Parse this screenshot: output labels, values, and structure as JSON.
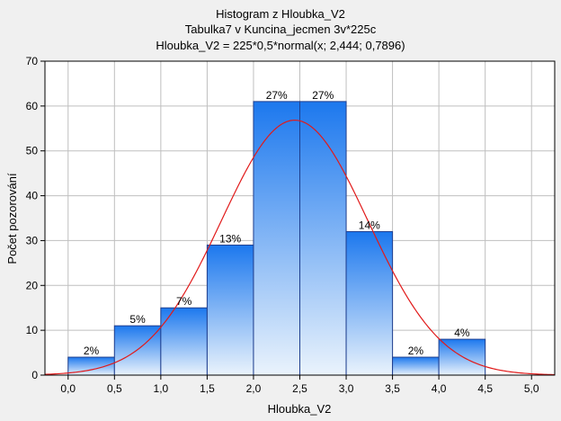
{
  "chart_data": {
    "type": "bar",
    "title": "Histogram z Hloubka_V2",
    "subtitle_lines": [
      "Tabulka7 v Kuncina_jecmen 3v*225c",
      "Hloubka_V2 = 225*0,5*normal(x; 2,444; 0,7896)"
    ],
    "xlabel": "Hloubka_V2",
    "ylabel": "Počet pozorování",
    "bins": [
      {
        "from": 0.0,
        "to": 0.5,
        "value": 4,
        "label": "2%"
      },
      {
        "from": 0.5,
        "to": 1.0,
        "value": 11,
        "label": "5%"
      },
      {
        "from": 1.0,
        "to": 1.5,
        "value": 15,
        "label": "7%"
      },
      {
        "from": 1.5,
        "to": 2.0,
        "value": 29,
        "label": "13%"
      },
      {
        "from": 2.0,
        "to": 2.5,
        "value": 61,
        "label": "27%"
      },
      {
        "from": 2.5,
        "to": 3.0,
        "value": 61,
        "label": "27%"
      },
      {
        "from": 3.0,
        "to": 3.5,
        "value": 32,
        "label": "14%"
      },
      {
        "from": 3.5,
        "to": 4.0,
        "value": 4,
        "label": "2%"
      },
      {
        "from": 4.0,
        "to": 4.5,
        "value": 8,
        "label": "4%"
      }
    ],
    "xlim": [
      -0.25,
      5.25
    ],
    "ylim": [
      0,
      70
    ],
    "xticks": [
      0.0,
      0.5,
      1.0,
      1.5,
      2.0,
      2.5,
      3.0,
      3.5,
      4.0,
      4.5,
      5.0
    ],
    "xtick_labels": [
      "0,0",
      "0,5",
      "1,0",
      "1,5",
      "2,0",
      "2,5",
      "3,0",
      "3,5",
      "4,0",
      "4,5",
      "5,0"
    ],
    "yticks": [
      0,
      10,
      20,
      30,
      40,
      50,
      60,
      70
    ],
    "ytick_labels": [
      "0",
      "10",
      "20",
      "30",
      "40",
      "50",
      "60",
      "70"
    ],
    "grid": true,
    "normal_fit": {
      "n": 225,
      "bin_width": 0.5,
      "mean": 2.444,
      "sd": 0.7896
    },
    "colors": {
      "bar_top": "#1c78ee",
      "bar_bottom": "#eaf3fc",
      "bar_edge": "#1f3f8f",
      "curve": "#e11a1a",
      "grid": "#bfbfbf",
      "plot_bg": "#ffffff",
      "page_bg": "#f0f0f0"
    }
  }
}
